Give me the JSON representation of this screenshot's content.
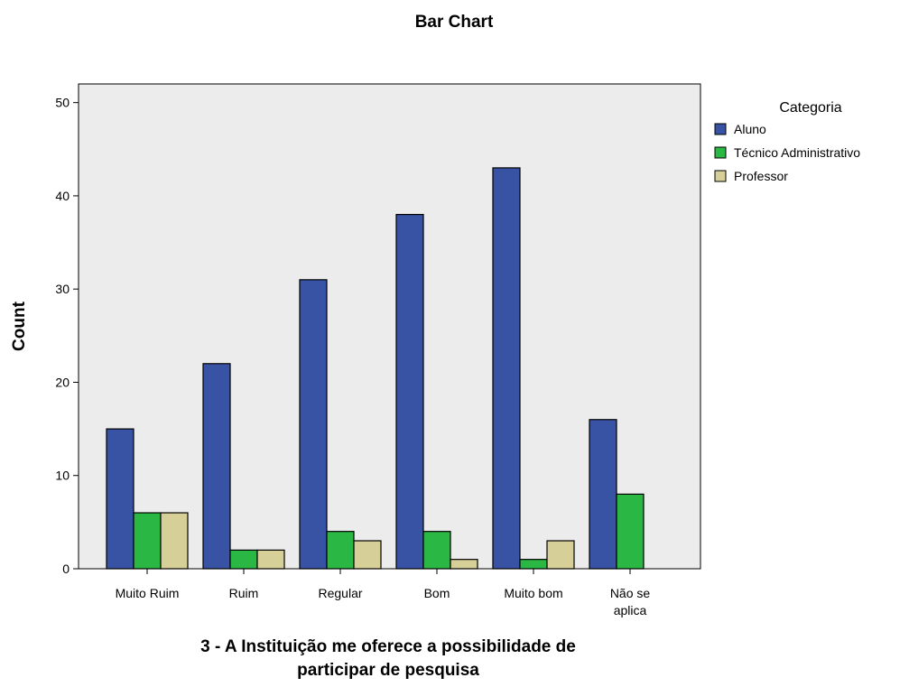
{
  "chart_data": {
    "type": "bar",
    "title": "Bar Chart",
    "xlabel": [
      "3 - A Instituição me oferece a possibilidade de",
      "participar de pesquisa"
    ],
    "ylabel": "Count",
    "ylim": [
      0,
      52
    ],
    "yticks": [
      0,
      10,
      20,
      30,
      40,
      50
    ],
    "grid": false,
    "legend_position": "right",
    "legend_title": "Categoria",
    "categories": [
      [
        "Muito Ruim"
      ],
      [
        "Ruim"
      ],
      [
        "Regular"
      ],
      [
        "Bom"
      ],
      [
        "Muito bom"
      ],
      [
        "Não se",
        "aplica"
      ]
    ],
    "series": [
      {
        "name": "Aluno",
        "color": "#3953a4",
        "values": [
          15,
          22,
          31,
          38,
          43,
          16
        ]
      },
      {
        "name": "Técnico Administrativo",
        "color": "#2bb743",
        "values": [
          6,
          2,
          4,
          4,
          1,
          8
        ]
      },
      {
        "name": "Professor",
        "color": "#d6cf97",
        "values": [
          6,
          2,
          3,
          1,
          3,
          0
        ]
      }
    ],
    "plot_background": "#ececec"
  }
}
